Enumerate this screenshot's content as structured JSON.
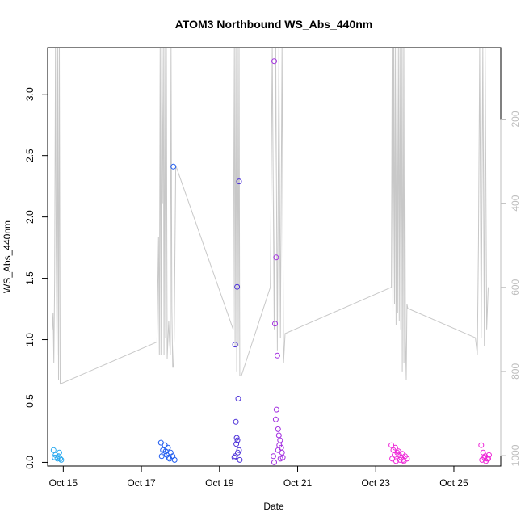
{
  "chart_data": {
    "type": "scatter",
    "title": "ATOM3 Northbound WS_Abs_440nm",
    "xlabel": "Date",
    "ylabel": "WS_Abs_440nm",
    "xlim": [
      14.6,
      26.2
    ],
    "ylim": [
      -0.03,
      3.38
    ],
    "x_ticks": [
      {
        "value": 15,
        "label": "Oct 15"
      },
      {
        "value": 17,
        "label": "Oct 17"
      },
      {
        "value": 19,
        "label": "Oct 19"
      },
      {
        "value": 21,
        "label": "Oct 21"
      },
      {
        "value": 23,
        "label": "Oct 23"
      },
      {
        "value": 25,
        "label": "Oct 25"
      }
    ],
    "y_ticks": [
      0.0,
      0.5,
      1.0,
      1.5,
      2.0,
      2.5,
      3.0
    ],
    "y_tick_labels": [
      "0.0",
      "0.5",
      "1.0",
      "1.5",
      "2.0",
      "2.5",
      "3.0"
    ],
    "y2_ticks": [
      200,
      400,
      600,
      800,
      1000
    ],
    "y2_tick_labels": [
      "200",
      "400",
      "600",
      "800",
      "1000"
    ],
    "y2lim": [
      1025,
      30
    ],
    "grid": false,
    "marker_colors": [
      "#29a9ef",
      "#1f5cf0",
      "#4b2fd8",
      "#a22de0",
      "#ee27d8"
    ],
    "line_color": "#c8c8c8",
    "points": [
      [
        14.75,
        0.1
      ],
      [
        14.8,
        0.06
      ],
      [
        14.85,
        0.03
      ],
      [
        14.9,
        0.08
      ],
      [
        14.95,
        0.02
      ],
      [
        14.78,
        0.04
      ],
      [
        14.88,
        0.05
      ],
      [
        14.92,
        0.03
      ],
      [
        17.5,
        0.16
      ],
      [
        17.55,
        0.1
      ],
      [
        17.6,
        0.14
      ],
      [
        17.65,
        0.06
      ],
      [
        17.7,
        0.04
      ],
      [
        17.75,
        0.08
      ],
      [
        17.8,
        0.05
      ],
      [
        17.85,
        0.02
      ],
      [
        17.52,
        0.05
      ],
      [
        17.62,
        0.09
      ],
      [
        17.68,
        0.12
      ],
      [
        17.72,
        0.03
      ],
      [
        17.58,
        0.07
      ],
      [
        17.82,
        2.41
      ],
      [
        19.4,
        0.96
      ],
      [
        19.45,
        1.43
      ],
      [
        19.5,
        2.29
      ],
      [
        19.48,
        0.52
      ],
      [
        19.42,
        0.33
      ],
      [
        19.44,
        0.2
      ],
      [
        19.46,
        0.18
      ],
      [
        19.5,
        0.1
      ],
      [
        19.4,
        0.05
      ],
      [
        19.52,
        0.02
      ],
      [
        19.38,
        0.04
      ],
      [
        19.43,
        0.15
      ],
      [
        19.47,
        0.08
      ],
      [
        20.4,
        3.27
      ],
      [
        20.45,
        1.67
      ],
      [
        20.42,
        1.13
      ],
      [
        20.48,
        0.87
      ],
      [
        20.46,
        0.43
      ],
      [
        20.44,
        0.35
      ],
      [
        20.5,
        0.27
      ],
      [
        20.52,
        0.22
      ],
      [
        20.55,
        0.18
      ],
      [
        20.58,
        0.12
      ],
      [
        20.6,
        0.08
      ],
      [
        20.62,
        0.04
      ],
      [
        20.38,
        0.05
      ],
      [
        20.4,
        0.0
      ],
      [
        20.56,
        0.03
      ],
      [
        20.5,
        0.1
      ],
      [
        20.53,
        0.14
      ],
      [
        23.4,
        0.14
      ],
      [
        23.45,
        0.1
      ],
      [
        23.5,
        0.12
      ],
      [
        23.55,
        0.08
      ],
      [
        23.6,
        0.06
      ],
      [
        23.65,
        0.04
      ],
      [
        23.7,
        0.02
      ],
      [
        23.75,
        0.05
      ],
      [
        23.8,
        0.03
      ],
      [
        23.42,
        0.03
      ],
      [
        23.48,
        0.06
      ],
      [
        23.52,
        0.01
      ],
      [
        23.58,
        0.09
      ],
      [
        23.62,
        0.02
      ],
      [
        23.68,
        0.07
      ],
      [
        23.72,
        0.01
      ],
      [
        25.7,
        0.14
      ],
      [
        25.75,
        0.08
      ],
      [
        25.8,
        0.05
      ],
      [
        25.85,
        0.03
      ],
      [
        25.9,
        0.06
      ],
      [
        25.72,
        0.02
      ],
      [
        25.78,
        0.04
      ],
      [
        25.82,
        0.01
      ],
      [
        25.88,
        0.03
      ]
    ],
    "altitude_line": [
      [
        14.72,
        700
      ],
      [
        14.74,
        660
      ],
      [
        14.76,
        780
      ],
      [
        14.78,
        580
      ],
      [
        14.8,
        30
      ],
      [
        14.82,
        500
      ],
      [
        14.84,
        760
      ],
      [
        14.86,
        30
      ],
      [
        14.88,
        820
      ],
      [
        14.9,
        30
      ],
      [
        14.92,
        830
      ],
      [
        17.4,
        730
      ],
      [
        17.44,
        480
      ],
      [
        17.46,
        760
      ],
      [
        17.48,
        30
      ],
      [
        17.5,
        760
      ],
      [
        17.52,
        30
      ],
      [
        17.54,
        400
      ],
      [
        17.56,
        30
      ],
      [
        17.58,
        760
      ],
      [
        17.6,
        30
      ],
      [
        17.62,
        720
      ],
      [
        17.64,
        30
      ],
      [
        17.66,
        770
      ],
      [
        17.7,
        680
      ],
      [
        17.72,
        730
      ],
      [
        17.74,
        760
      ],
      [
        17.76,
        30
      ],
      [
        17.78,
        650
      ],
      [
        17.8,
        790
      ],
      [
        17.82,
        790
      ],
      [
        17.84,
        720
      ],
      [
        17.88,
        310
      ],
      [
        19.35,
        700
      ],
      [
        19.38,
        30
      ],
      [
        19.4,
        740
      ],
      [
        19.42,
        30
      ],
      [
        19.44,
        800
      ],
      [
        19.46,
        30
      ],
      [
        19.48,
        740
      ],
      [
        19.5,
        30
      ],
      [
        19.52,
        810
      ],
      [
        19.56,
        810
      ],
      [
        20.3,
        600
      ],
      [
        20.35,
        30
      ],
      [
        20.4,
        700
      ],
      [
        20.44,
        30
      ],
      [
        20.48,
        750
      ],
      [
        20.52,
        30
      ],
      [
        20.56,
        720
      ],
      [
        20.6,
        30
      ],
      [
        20.64,
        780
      ],
      [
        20.68,
        710
      ],
      [
        23.4,
        600
      ],
      [
        23.42,
        30
      ],
      [
        23.44,
        680
      ],
      [
        23.46,
        30
      ],
      [
        23.48,
        640
      ],
      [
        23.5,
        30
      ],
      [
        23.52,
        690
      ],
      [
        23.54,
        30
      ],
      [
        23.56,
        660
      ],
      [
        23.58,
        30
      ],
      [
        23.6,
        680
      ],
      [
        23.62,
        30
      ],
      [
        23.64,
        700
      ],
      [
        23.66,
        30
      ],
      [
        23.68,
        800
      ],
      [
        23.7,
        30
      ],
      [
        23.72,
        780
      ],
      [
        23.74,
        30
      ],
      [
        23.76,
        720
      ],
      [
        23.78,
        820
      ],
      [
        23.8,
        640
      ],
      [
        23.82,
        650
      ],
      [
        25.55,
        720
      ],
      [
        25.6,
        760
      ],
      [
        25.63,
        500
      ],
      [
        25.66,
        30
      ],
      [
        25.7,
        720
      ],
      [
        25.74,
        30
      ],
      [
        25.78,
        740
      ],
      [
        25.8,
        30
      ],
      [
        25.84,
        700
      ],
      [
        25.88,
        600
      ]
    ]
  }
}
